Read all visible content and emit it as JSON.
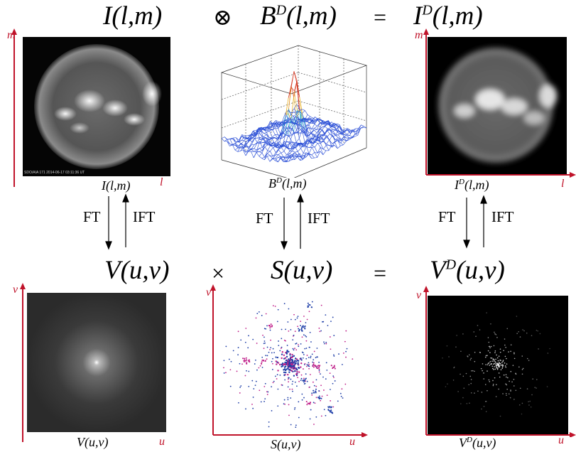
{
  "top_equation": {
    "left": "I(l,m)",
    "op1": "⊗",
    "middle_base": "B",
    "middle_sup": "D",
    "middle_args": "(l,m)",
    "op2": "=",
    "right_base": "I",
    "right_sup": "D",
    "right_args": "(l,m)"
  },
  "bottom_equation": {
    "left": "V(u,v)",
    "op1": "×",
    "middle": "S(u,v)",
    "op2": "=",
    "right_base": "V",
    "right_sup": "D",
    "right_args": "(u,v)"
  },
  "captions": {
    "top_left": "I(l,m)",
    "top_mid_base": "B",
    "top_mid_sup": "D",
    "top_mid_args": "(l,m)",
    "top_right_base": "I",
    "top_right_sup": "D",
    "top_right_args": "(l,m)",
    "bottom_left": "V(u,v)",
    "bottom_mid": "S(u,v)",
    "bottom_right_base": "V",
    "bottom_right_sup": "D",
    "bottom_right_args": "(u,v)"
  },
  "transforms": {
    "forward": "FT",
    "inverse": "IFT"
  },
  "axes": {
    "image_x": "l",
    "image_y": "m",
    "uv_x": "u",
    "uv_y": "v"
  },
  "sun_image_text": "SDO/AIA 171   2014-06-17 03:11:36 UT",
  "colors": {
    "axis": "#c0132a",
    "sampling_blue": "#1f3fa8",
    "sampling_magenta": "#c0208a",
    "mesh_blue": "#2b4fd6",
    "mesh_peak": "#d4331c"
  }
}
